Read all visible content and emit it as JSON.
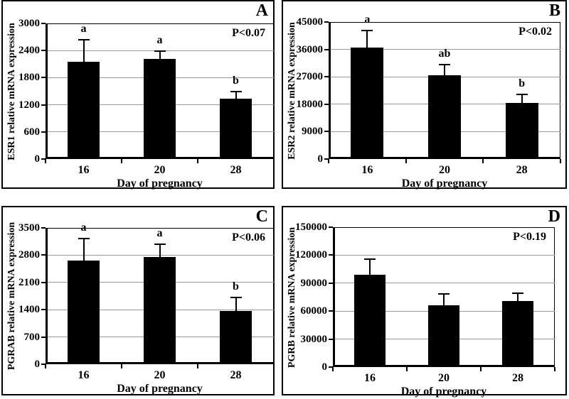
{
  "figure_title": "",
  "colors": {
    "bar": "#000000",
    "grid": "#9a9a9a",
    "axis": "#000000",
    "background": "#ffffff"
  },
  "chart_data": [
    {
      "type": "bar",
      "panel_label": "A",
      "annotation": "P<0.07",
      "ylabel": "ESR1 relative mRNA expression",
      "xlabel": "Day of pregnancy",
      "categories": [
        "16",
        "20",
        "28"
      ],
      "values": [
        2150,
        2210,
        1330
      ],
      "errors_plus": [
        500,
        200,
        180
      ],
      "bar_labels": [
        "a",
        "a",
        "b"
      ],
      "yticks": [
        0,
        600,
        1200,
        1800,
        2400,
        3000
      ],
      "ylim": [
        0,
        3000
      ],
      "grid": "horizontal",
      "legend": "none"
    },
    {
      "type": "bar",
      "panel_label": "B",
      "annotation": "P<0.02",
      "ylabel": "ESR2 relative mRNA expression",
      "xlabel": "Day of pregnancy",
      "categories": [
        "16",
        "20",
        "28"
      ],
      "values": [
        36700,
        27400,
        18400
      ],
      "errors_plus": [
        5700,
        3800,
        3000
      ],
      "bar_labels": [
        "a",
        "ab",
        "b"
      ],
      "yticks": [
        0,
        9000,
        18000,
        27000,
        36000,
        45000
      ],
      "ylim": [
        0,
        45000
      ],
      "grid": "horizontal",
      "legend": "none"
    },
    {
      "type": "bar",
      "panel_label": "C",
      "annotation": "P<0.06",
      "ylabel": "PGRAB relative mRNA expression",
      "xlabel": "Day of pregnancy",
      "categories": [
        "16",
        "20",
        "28"
      ],
      "values": [
        2660,
        2745,
        1375
      ],
      "errors_plus": [
        580,
        350,
        350
      ],
      "bar_labels": [
        "a",
        "a",
        "b"
      ],
      "yticks": [
        0,
        700,
        1400,
        2100,
        2800,
        3500
      ],
      "ylim": [
        0,
        3500
      ],
      "grid": "horizontal",
      "legend": "none"
    },
    {
      "type": "bar",
      "panel_label": "D",
      "annotation": "P<0.19",
      "ylabel": "PGRB relative mRNA expression",
      "xlabel": "Day of pregnancy",
      "categories": [
        "16",
        "20",
        "28"
      ],
      "values": [
        99200,
        66200,
        70800
      ],
      "errors_plus": [
        17000,
        13000,
        9100
      ],
      "bar_labels": [
        "",
        "",
        ""
      ],
      "yticks": [
        0,
        30000,
        60000,
        90000,
        120000,
        150000
      ],
      "ylim": [
        0,
        150000
      ],
      "grid": "horizontal",
      "legend": "none"
    }
  ]
}
